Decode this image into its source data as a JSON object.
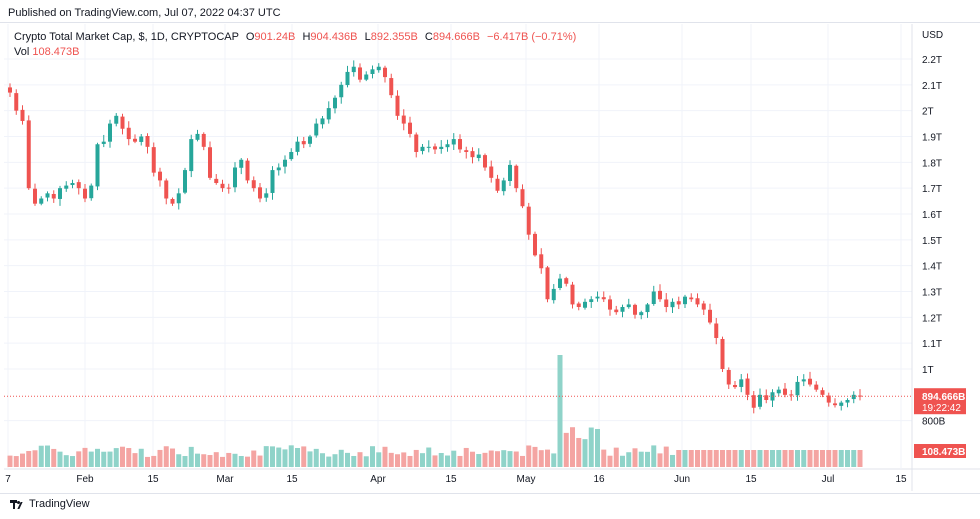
{
  "published": "Published on TradingView.com, Jul 07, 2022 04:37 UTC",
  "legend": {
    "symbol": "Crypto Total Market Cap, $, 1D, CRYPTOCAP",
    "o_label": "O",
    "o_value": "901.24B",
    "h_label": "H",
    "h_value": "904.436B",
    "l_label": "L",
    "l_value": "892.355B",
    "c_label": "C",
    "c_value": "894.666B",
    "change": "−6.417B (−0.71%)"
  },
  "volume": {
    "label": "Vol",
    "value": "108.473B"
  },
  "price_axis": {
    "currency": "USD",
    "ticks": [
      "2.2T",
      "2.1T",
      "2T",
      "1.9T",
      "1.8T",
      "1.7T",
      "1.6T",
      "1.5T",
      "1.4T",
      "1.3T",
      "1.2T",
      "1.1T",
      "1T",
      "800B"
    ],
    "last_price_tag": "894.666B",
    "countdown_tag": "19:22:42",
    "volume_tag": "108.473B"
  },
  "time_axis": {
    "ticks": [
      "7",
      "Feb",
      "15",
      "Mar",
      "15",
      "Apr",
      "15",
      "May",
      "16",
      "Jun",
      "15",
      "Jul",
      "15"
    ]
  },
  "footer": {
    "brand": "TradingView"
  },
  "colors": {
    "up": "#26a69a",
    "down": "#ef5350",
    "up_vol": "#8fd3c9",
    "down_vol": "#f4a4a2",
    "grid": "#f0f3fa"
  },
  "chart_data": {
    "type": "candlestick",
    "title": "Crypto Total Market Cap, $, 1D, CRYPTOCAP",
    "ylabel": "USD",
    "ylim_billions": [
      760,
      2250
    ],
    "price_unit": "billions USD",
    "x_range": [
      "2022-01-07",
      "2022-07-15"
    ],
    "close_billions": [
      2070,
      2000,
      1960,
      1700,
      1640,
      1660,
      1680,
      1660,
      1700,
      1710,
      1720,
      1700,
      1660,
      1710,
      1870,
      1880,
      1950,
      1980,
      1930,
      1890,
      1880,
      1900,
      1860,
      1760,
      1730,
      1660,
      1640,
      1680,
      1770,
      1890,
      1910,
      1860,
      1740,
      1720,
      1700,
      1700,
      1780,
      1810,
      1730,
      1700,
      1660,
      1680,
      1770,
      1780,
      1810,
      1840,
      1880,
      1870,
      1900,
      1950,
      1970,
      2010,
      2050,
      2100,
      2150,
      2170,
      2120,
      2140,
      2160,
      2170,
      2130,
      2060,
      1980,
      1950,
      1910,
      1840,
      1860,
      1860,
      1850,
      1860,
      1870,
      1890,
      1850,
      1840,
      1820,
      1830,
      1780,
      1740,
      1690,
      1730,
      1790,
      1700,
      1630,
      1520,
      1440,
      1390,
      1270,
      1310,
      1350,
      1330,
      1250,
      1240,
      1260,
      1270,
      1280,
      1270,
      1230,
      1220,
      1240,
      1250,
      1210,
      1220,
      1250,
      1300,
      1270,
      1240,
      1260,
      1250,
      1280,
      1270,
      1250,
      1230,
      1180,
      1120,
      1000,
      940,
      930,
      960,
      900,
      850,
      900,
      880,
      910,
      920,
      900,
      900,
      950,
      960,
      940,
      920,
      900,
      870,
      860,
      870,
      880,
      900,
      895
    ],
    "last_price": "894.666B",
    "last_volume": "108.473B"
  }
}
